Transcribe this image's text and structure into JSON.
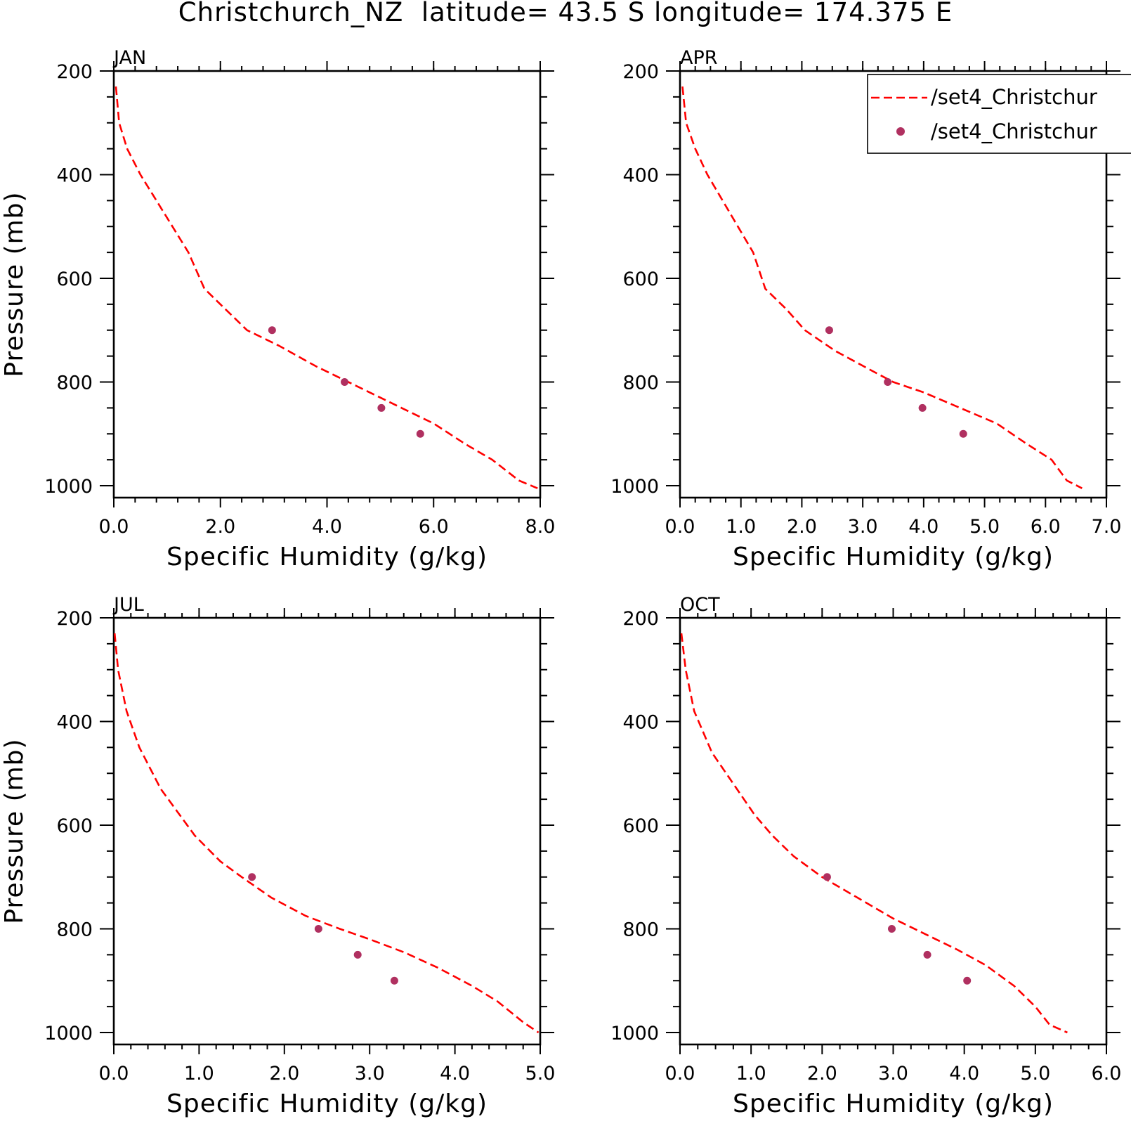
{
  "figure": {
    "title": "Christchurch_NZ  latitude= 43.5 S longitude= 174.375 E"
  },
  "legend": {
    "placement": "top-right (APR panel)",
    "entries": [
      {
        "label": "/set4_Christchur",
        "style": "dashed-line",
        "color": "#ff0000"
      },
      {
        "label": "/set4_Christchur",
        "style": "marker",
        "color": "#b03060"
      }
    ]
  },
  "colors": {
    "model_line": "#ff0000",
    "obs_marker": "#b03060",
    "axes": "#000000"
  },
  "chart_data": [
    {
      "type": "line",
      "panel_title": "JAN",
      "xlabel": "Specific Humidity (g/kg)",
      "ylabel": "Pressure (mb)",
      "xlim": [
        0,
        8
      ],
      "ylim": [
        200,
        1000
      ],
      "y_inverted": true,
      "xticks": [
        "0.0",
        "2.0",
        "4.0",
        "6.0",
        "8.0"
      ],
      "yticks": [
        "200",
        "400",
        "600",
        "800",
        "1000"
      ],
      "series": [
        {
          "style": "dashed-line",
          "x": [
            0.04,
            0.1,
            0.25,
            0.5,
            0.8,
            1.1,
            1.4,
            1.7,
            2.1,
            2.5,
            3.1,
            3.8,
            4.3,
            4.8,
            5.4,
            6.0,
            6.6,
            7.1,
            7.6,
            7.95
          ],
          "y": [
            230,
            300,
            350,
            400,
            450,
            500,
            550,
            620,
            660,
            700,
            730,
            770,
            795,
            820,
            850,
            880,
            920,
            950,
            990,
            1005
          ]
        },
        {
          "style": "marker",
          "x": [
            2.97,
            4.33,
            5.02,
            5.75
          ],
          "y": [
            700,
            800,
            850,
            900
          ]
        }
      ]
    },
    {
      "type": "line",
      "panel_title": "APR",
      "xlabel": "Specific Humidity (g/kg)",
      "ylabel": "",
      "xlim": [
        0,
        7
      ],
      "ylim": [
        200,
        1000
      ],
      "y_inverted": true,
      "xticks": [
        "0.0",
        "1.0",
        "2.0",
        "3.0",
        "4.0",
        "5.0",
        "6.0",
        "7.0"
      ],
      "yticks": [
        "200",
        "400",
        "600",
        "800",
        "1000"
      ],
      "series": [
        {
          "style": "dashed-line",
          "x": [
            0.04,
            0.1,
            0.25,
            0.45,
            0.7,
            0.95,
            1.2,
            1.4,
            1.75,
            2.05,
            2.55,
            3.1,
            3.5,
            4.0,
            4.6,
            5.2,
            5.7,
            6.1,
            6.35,
            6.6
          ],
          "y": [
            230,
            300,
            350,
            400,
            450,
            500,
            550,
            620,
            660,
            700,
            740,
            775,
            800,
            820,
            850,
            880,
            920,
            950,
            990,
            1005
          ]
        },
        {
          "style": "marker",
          "x": [
            2.45,
            3.41,
            3.98,
            4.65
          ],
          "y": [
            700,
            800,
            850,
            900
          ]
        }
      ]
    },
    {
      "type": "line",
      "panel_title": "JUL",
      "xlabel": "Specific Humidity (g/kg)",
      "ylabel": "Pressure (mb)",
      "xlim": [
        0,
        5
      ],
      "ylim": [
        200,
        1000
      ],
      "y_inverted": true,
      "xticks": [
        "0.0",
        "1.0",
        "2.0",
        "3.0",
        "4.0",
        "5.0"
      ],
      "yticks": [
        "200",
        "400",
        "600",
        "800",
        "1000"
      ],
      "series": [
        {
          "style": "dashed-line",
          "x": [
            0.01,
            0.05,
            0.15,
            0.3,
            0.55,
            0.95,
            1.25,
            1.5,
            1.85,
            2.25,
            2.65,
            3.0,
            3.4,
            3.8,
            4.2,
            4.5,
            4.8,
            4.98
          ],
          "y": [
            230,
            300,
            380,
            450,
            530,
            620,
            670,
            700,
            740,
            775,
            800,
            820,
            845,
            875,
            910,
            940,
            980,
            1000
          ]
        },
        {
          "style": "marker",
          "x": [
            1.62,
            2.4,
            2.86,
            3.29
          ],
          "y": [
            700,
            800,
            850,
            900
          ]
        }
      ]
    },
    {
      "type": "line",
      "panel_title": "OCT",
      "xlabel": "Specific Humidity (g/kg)",
      "ylabel": "",
      "xlim": [
        0,
        6
      ],
      "ylim": [
        200,
        1000
      ],
      "y_inverted": true,
      "xticks": [
        "0.0",
        "1.0",
        "2.0",
        "3.0",
        "4.0",
        "5.0",
        "6.0"
      ],
      "yticks": [
        "200",
        "400",
        "600",
        "800",
        "1000"
      ],
      "series": [
        {
          "style": "dashed-line",
          "x": [
            0.02,
            0.08,
            0.2,
            0.45,
            0.8,
            1.05,
            1.3,
            1.6,
            2.0,
            2.5,
            3.0,
            3.45,
            3.9,
            4.3,
            4.7,
            5.0,
            5.2,
            5.45
          ],
          "y": [
            230,
            300,
            380,
            460,
            530,
            580,
            620,
            660,
            700,
            740,
            780,
            810,
            840,
            870,
            910,
            950,
            985,
            1000
          ]
        },
        {
          "style": "marker",
          "x": [
            2.07,
            2.98,
            3.48,
            4.04
          ],
          "y": [
            700,
            800,
            850,
            900
          ]
        }
      ]
    }
  ]
}
